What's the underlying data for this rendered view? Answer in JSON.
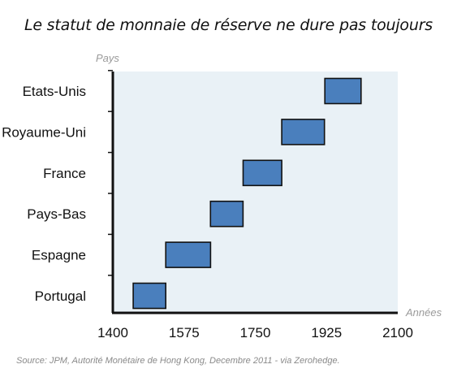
{
  "title": "Le statut de monnaie de réserve ne dure pas toujours",
  "source": "Source: JPM, Autorité Monétaire de Hong Kong, Decembre 2011 - via Zerohedge.",
  "colors": {
    "bar_fill": "#4a7fbd",
    "bar_stroke": "#111111",
    "plot_background": "#e9f1f6",
    "axis": "#111111",
    "axis_title": "#9a9a9a"
  },
  "chart_data": {
    "type": "bar",
    "orientation": "horizontal-range",
    "title": "Le statut de monnaie de réserve ne dure pas toujours",
    "xlabel": "Années",
    "ylabel": "Pays",
    "xlim": [
      1400,
      2100
    ],
    "xticks": [
      "1400",
      "1575",
      "1750",
      "1925",
      "2100"
    ],
    "xtick_values": [
      1400,
      1575,
      1750,
      1925,
      2100
    ],
    "grid": false,
    "categories": [
      "Etats-Unis",
      "Royaume-Uni",
      "France",
      "Pays-Bas",
      "Espagne",
      "Portugal"
    ],
    "ranges": [
      {
        "country": "Etats-Unis",
        "start": 1921,
        "end": 2010
      },
      {
        "country": "Royaume-Uni",
        "start": 1815,
        "end": 1920
      },
      {
        "country": "France",
        "start": 1720,
        "end": 1815
      },
      {
        "country": "Pays-Bas",
        "start": 1640,
        "end": 1720
      },
      {
        "country": "Espagne",
        "start": 1530,
        "end": 1640
      },
      {
        "country": "Portugal",
        "start": 1450,
        "end": 1530
      }
    ]
  }
}
